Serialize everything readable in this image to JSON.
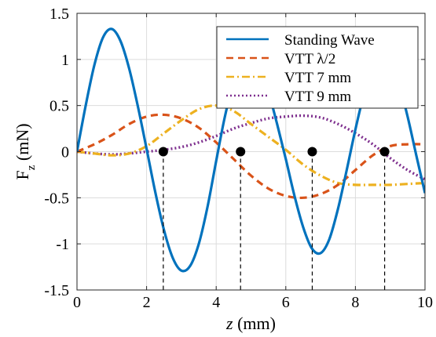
{
  "chart_data": {
    "type": "line",
    "xlabel_symbol": "z",
    "xlabel_unit": " (mm)",
    "ylabel_base": "F",
    "ylabel_sub": "z",
    "ylabel_unit": " (mN)",
    "xlim": [
      0,
      10
    ],
    "ylim": [
      -1.5,
      1.5
    ],
    "x_ticks": [
      0,
      2,
      4,
      6,
      8,
      10
    ],
    "y_ticks": [
      -1.5,
      -1,
      -0.5,
      0,
      0.5,
      1,
      1.5
    ],
    "x_tick_labels": [
      "0",
      "2",
      "4",
      "6",
      "8",
      "10"
    ],
    "y_tick_labels": [
      "-1.5",
      "-1",
      "-0.5",
      "0",
      "0.5",
      "1",
      "1.5"
    ],
    "grid": true,
    "legend_position": "top-right",
    "series": [
      {
        "name": "Standing Wave",
        "color": "#0072BD",
        "style": "solid",
        "x": [
          0,
          0.25,
          0.5,
          0.75,
          1.0,
          1.25,
          1.5,
          1.75,
          2.0,
          2.25,
          2.5,
          2.75,
          3.0,
          3.25,
          3.5,
          3.75,
          4.0,
          4.25,
          4.5,
          4.75,
          5.0,
          5.25,
          5.5,
          5.75,
          6.0,
          6.25,
          6.5,
          6.75,
          7.0,
          7.25,
          7.5,
          7.75,
          8.0,
          8.25,
          8.5,
          8.75,
          9.0,
          9.25,
          9.5,
          9.75,
          10.0
        ],
        "values": [
          0.0,
          0.5,
          0.94,
          1.24,
          1.33,
          1.2,
          0.9,
          0.49,
          0.03,
          -0.44,
          -0.85,
          -1.15,
          -1.29,
          -1.24,
          -1.0,
          -0.6,
          -0.1,
          0.38,
          0.75,
          0.98,
          1.03,
          0.92,
          0.65,
          0.3,
          -0.08,
          -0.48,
          -0.82,
          -1.05,
          -1.1,
          -0.95,
          -0.62,
          -0.2,
          0.24,
          0.63,
          0.91,
          1.04,
          0.98,
          0.74,
          0.38,
          -0.04,
          -0.45
        ]
      },
      {
        "name": "VTT λ/2",
        "color": "#D95319",
        "style": "dashed",
        "x": [
          0,
          0.5,
          1.0,
          1.5,
          2.0,
          2.5,
          3.0,
          3.5,
          4.0,
          4.5,
          5.0,
          5.5,
          6.0,
          6.5,
          7.0,
          7.5,
          8.0,
          8.5,
          9.0,
          9.5,
          10.0
        ],
        "values": [
          0.0,
          0.08,
          0.18,
          0.3,
          0.38,
          0.4,
          0.36,
          0.26,
          0.1,
          -0.08,
          -0.26,
          -0.4,
          -0.48,
          -0.5,
          -0.46,
          -0.36,
          -0.2,
          -0.04,
          0.06,
          0.08,
          0.08
        ]
      },
      {
        "name": "VTT 7 mm",
        "color": "#EDB120",
        "style": "dashdot",
        "x": [
          0,
          0.5,
          1.0,
          1.5,
          2.0,
          2.5,
          3.0,
          3.5,
          4.0,
          4.5,
          5.0,
          5.5,
          6.0,
          6.5,
          7.0,
          7.5,
          8.0,
          8.5,
          9.0,
          9.5,
          10.0
        ],
        "values": [
          0.0,
          -0.02,
          -0.04,
          -0.02,
          0.06,
          0.2,
          0.34,
          0.46,
          0.5,
          0.44,
          0.3,
          0.16,
          0.02,
          -0.14,
          -0.26,
          -0.34,
          -0.36,
          -0.36,
          -0.36,
          -0.35,
          -0.34
        ]
      },
      {
        "name": "VTT 9 mm",
        "color": "#7E2F8E",
        "style": "dotted",
        "x": [
          0,
          0.5,
          1.0,
          1.5,
          2.0,
          2.5,
          3.0,
          3.5,
          4.0,
          4.5,
          5.0,
          5.5,
          6.0,
          6.5,
          7.0,
          7.5,
          8.0,
          8.5,
          9.0,
          9.5,
          10.0
        ],
        "values": [
          0.0,
          -0.02,
          -0.03,
          -0.02,
          0.0,
          0.02,
          0.05,
          0.1,
          0.17,
          0.25,
          0.31,
          0.36,
          0.38,
          0.39,
          0.37,
          0.3,
          0.2,
          0.08,
          -0.07,
          -0.2,
          -0.3
        ]
      }
    ],
    "zero_crossings": {
      "color": "#000000",
      "x": [
        2.48,
        4.7,
        6.76,
        8.84
      ],
      "values": [
        0,
        0,
        0,
        0
      ]
    }
  }
}
